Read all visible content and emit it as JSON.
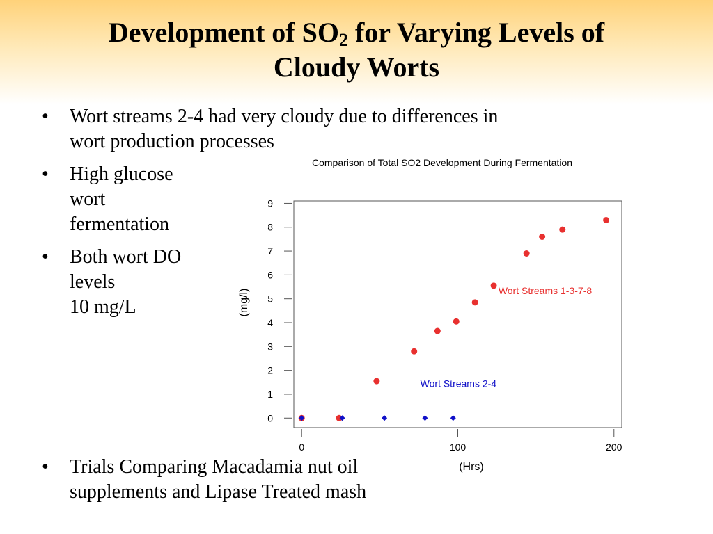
{
  "slide": {
    "title_main": "Development of SO",
    "title_sub": "2",
    "title_rest": " for Varying Levels of",
    "title_line2": "Cloudy Worts"
  },
  "bullets": [
    {
      "marker": "•",
      "text": "Wort streams 2-4 had very cloudy due to differences in\nwort production processes"
    },
    {
      "marker": "•",
      "text": "High glucose\nwort\nfermentation"
    },
    {
      "marker": "•",
      "text": "Both wort DO\nlevels\n10 mg/L"
    },
    {
      "marker": "•",
      "text": "Trials Comparing Macadamia nut oil\nsupplements and Lipase Treated mash"
    }
  ],
  "chart_data": {
    "type": "scatter",
    "title": "Comparison of Total SO2 Development During Fermentation",
    "xlabel": "(Hrs)",
    "ylabel": "(mg/l)",
    "xlim": [
      -5,
      205
    ],
    "ylim": [
      -0.4,
      9.1
    ],
    "xticks": [
      0,
      100,
      200
    ],
    "yticks": [
      0,
      1,
      2,
      3,
      4,
      5,
      6,
      7,
      8,
      9
    ],
    "grid": false,
    "series": [
      {
        "name": "Wort Streams 1-3-7-8",
        "color": "#e8302f",
        "marker": "circle",
        "x": [
          0,
          24,
          48,
          72,
          87,
          99,
          111,
          123,
          144,
          154,
          167,
          195
        ],
        "y": [
          0,
          0,
          1.55,
          2.8,
          3.65,
          4.05,
          4.85,
          5.55,
          6.9,
          7.6,
          7.9,
          8.3
        ]
      },
      {
        "name": "Wort Streams 2-4",
        "color": "#1010c8",
        "marker": "diamond",
        "x": [
          0,
          26,
          53,
          79,
          97
        ],
        "y": [
          0,
          0,
          0,
          0,
          0
        ]
      }
    ],
    "annotations": [
      {
        "text": "Wort Streams 1-3-7-8",
        "series": 0,
        "x": 126,
        "y": 5.2
      },
      {
        "text": "Wort Streams 2-4",
        "series": 1,
        "x": 76,
        "y": 1.3
      }
    ]
  }
}
